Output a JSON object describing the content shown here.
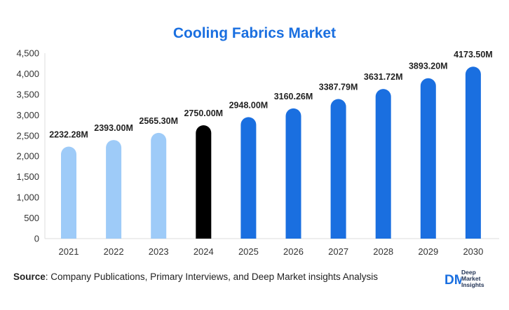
{
  "chart_data": {
    "type": "bar",
    "title": "Cooling Fabrics Market",
    "xlabel": "",
    "ylabel": "",
    "categories": [
      "2021",
      "2022",
      "2023",
      "2024",
      "2025",
      "2026",
      "2027",
      "2028",
      "2029",
      "2030"
    ],
    "values": [
      2232.28,
      2393.0,
      2565.3,
      2750.0,
      2948.0,
      3160.26,
      3387.79,
      3631.72,
      3893.2,
      4173.5
    ],
    "data_labels": [
      "2232.28M",
      "2393.00M",
      "2565.30M",
      "2750.00M",
      "2948.00M",
      "3160.26M",
      "3387.79M",
      "3631.72M",
      "3893.20M",
      "4173.50M"
    ],
    "ylim": [
      0,
      4500
    ],
    "yticks": [
      0,
      500,
      1000,
      1500,
      2000,
      2500,
      3000,
      3500,
      4000,
      4500
    ],
    "ytick_labels": [
      "0",
      "500",
      "1,000",
      "1,500",
      "2,000",
      "2,500",
      "3,000",
      "3,500",
      "4,000",
      "4,500"
    ],
    "grid": false,
    "bar_colors": [
      "#9ecbf8",
      "#9ecbf8",
      "#9ecbf8",
      "#000000",
      "#1a6fe0",
      "#1a6fe0",
      "#1a6fe0",
      "#1a6fe0",
      "#1a6fe0",
      "#1a6fe0"
    ]
  },
  "source": {
    "label": "Source",
    "text": ": Company Publications, Primary Interviews, and Deep Market insights Analysis"
  },
  "logo": {
    "mark": "DM",
    "line1": "Deep",
    "line2": "Market",
    "line3": "Insights",
    "color": "#1a6fe0"
  }
}
